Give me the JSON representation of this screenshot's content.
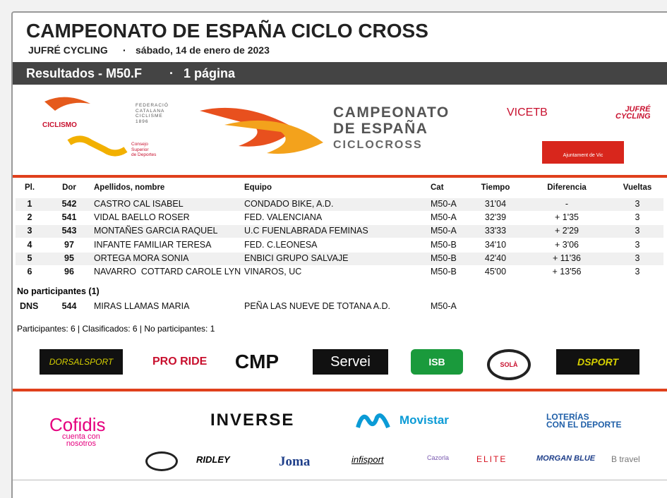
{
  "header": {
    "title": "CAMPEONATO DE ESPAÑA CICLO CROSS",
    "organizer": "JUFRÉ CYCLING",
    "separator": "·",
    "date": "sábado, 14 de enero de 2023"
  },
  "bar": {
    "label": "Resultados - M50.F",
    "separator": "·",
    "pages": "1 página"
  },
  "banner": {
    "rfec": "CICLISMO",
    "fcc": [
      "FEDERACIÓ",
      "CATALANA",
      "CICLISME",
      "1896"
    ],
    "csd": [
      "Consejo",
      "Superior",
      "de Deportes"
    ],
    "event": [
      "CAMPEONATO",
      "DE ESPAÑA",
      "CICLOCROSS"
    ],
    "vic": "VICETB",
    "jufre": [
      "JUFRÉ",
      "CYCLING"
    ],
    "ajuntament": "Ajuntament de Vic"
  },
  "table": {
    "columns": [
      "Pl.",
      "Dor",
      "Apellidos, nombre",
      "Equipo",
      "Cat",
      "Tiempo",
      "Diferencia",
      "Vueltas"
    ],
    "rows": [
      [
        "1",
        "542",
        "CASTRO CAL ISABEL",
        "CONDADO BIKE, A.D.",
        "M50-A",
        "31'04",
        "-",
        "3"
      ],
      [
        "2",
        "541",
        "VIDAL BAELLO ROSER",
        "FED. VALENCIANA",
        "M50-A",
        "32'39",
        "+ 1'35",
        "3"
      ],
      [
        "3",
        "543",
        "MONTAÑES GARCIA RAQUEL",
        "U.C FUENLABRADA FEMINAS",
        "M50-A",
        "33'33",
        "+ 2'29",
        "3"
      ],
      [
        "4",
        "97",
        "INFANTE FAMILIAR TERESA",
        "FED. C.LEONESA",
        "M50-B",
        "34'10",
        "+ 3'06",
        "3"
      ],
      [
        "5",
        "95",
        "ORTEGA MORA SONIA",
        "ENBICI GRUPO SALVAJE",
        "M50-B",
        "42'40",
        "+ 11'36",
        "3"
      ],
      [
        "6",
        "96",
        "NAVARRO  COTTARD CAROLE LYN",
        "VINAROS, UC",
        "M50-B",
        "45'00",
        "+ 13'56",
        "3"
      ]
    ]
  },
  "non_participants": {
    "title": "No participantes (1)",
    "rows": [
      [
        "DNS",
        "544",
        "MIRAS LLAMAS MARIA",
        "PEÑA LAS NUEVE DE TOTANA A.D.",
        "M50-A"
      ]
    ]
  },
  "summary": "Participantes: 6 | Clasificados: 6 | No participantes: 1",
  "sponsors_top": [
    "DORSALSPORT",
    "PRO RIDE",
    "CMP",
    "Servei",
    "ISB",
    "SOLÀ",
    "DSPORT"
  ],
  "sponsors_bottom": {
    "cofidis": "Cofidis",
    "cofidis_tag": [
      "cuenta con",
      "nosotros"
    ],
    "inverse": "INVERSE",
    "movistar": "Movistar",
    "loterias": [
      "LOTERÍAS",
      "CON EL DEPORTE"
    ],
    "small": [
      "RIDLEY",
      "Joma",
      "infisport",
      "Cazorla",
      "ELITE",
      "MORGAN BLUE",
      "B travel"
    ]
  }
}
